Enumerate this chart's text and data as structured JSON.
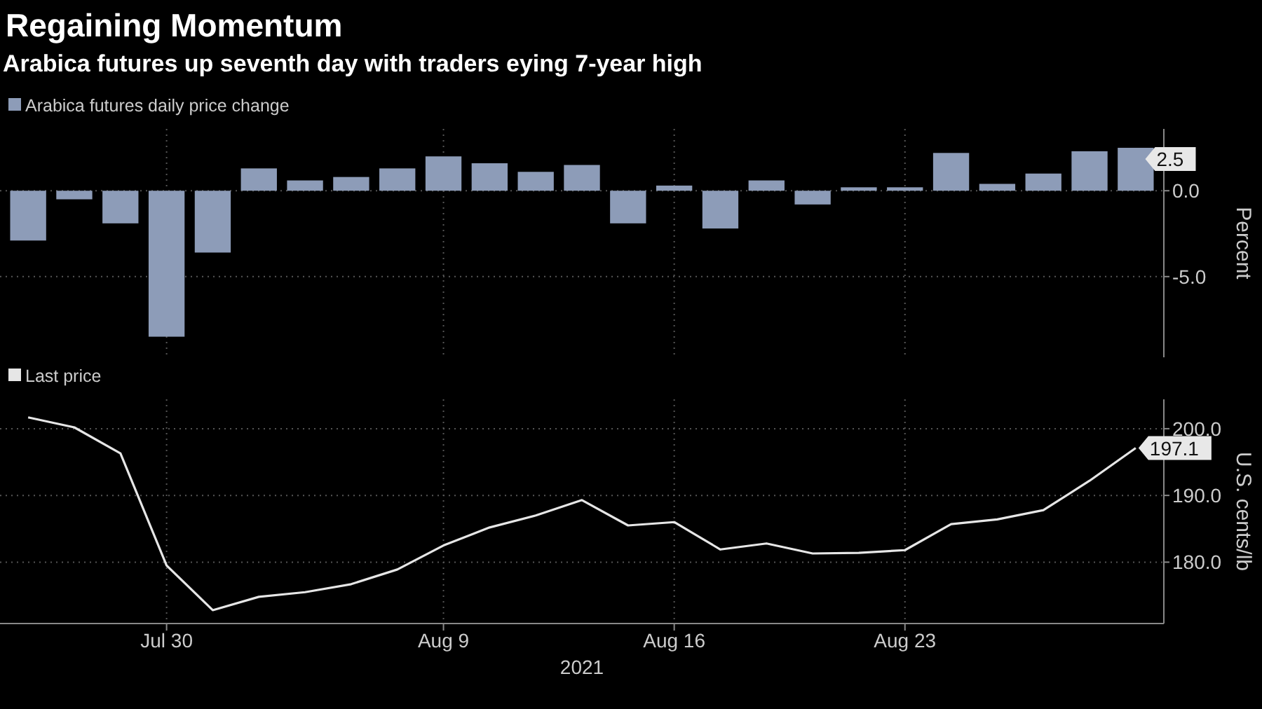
{
  "chart_data": [
    {
      "type": "bar",
      "title": "Regaining Momentum",
      "subtitle": "Arabica futures up seventh day with traders eying 7-year high",
      "categories": [
        null,
        null,
        null,
        null,
        null,
        null,
        null,
        null,
        null,
        null,
        null,
        null,
        null,
        null,
        null,
        null,
        null,
        null,
        null,
        null,
        null,
        null,
        null,
        null,
        null
      ],
      "series": [
        {
          "name": "Arabica futures daily price change",
          "color": "#8d9cb8",
          "values": [
            -2.9,
            -0.5,
            -1.9,
            -8.5,
            -3.6,
            1.3,
            0.6,
            0.8,
            1.3,
            2.0,
            1.6,
            1.1,
            1.5,
            -1.9,
            0.3,
            -2.2,
            0.6,
            -0.8,
            0.2,
            0.2,
            2.2,
            0.4,
            1.0,
            2.3,
            2.5
          ],
          "value_labels": [
            null,
            null,
            null,
            null,
            null,
            null,
            null,
            null,
            null,
            null,
            null,
            null,
            null,
            null,
            null,
            null,
            null,
            null,
            null,
            null,
            null,
            null,
            null,
            null,
            "2.5"
          ]
        }
      ],
      "ylim": [
        -9.7,
        3.6
      ],
      "yticks": [
        {
          "value": -5,
          "label": "-5.0"
        },
        {
          "value": 0,
          "label": "0.0"
        }
      ],
      "ylabel": "Percent",
      "grid": true,
      "legend": "top left",
      "tick_labels": "y"
    },
    {
      "type": "line",
      "xlabel": "2021",
      "categories": [
        null,
        null,
        null,
        "Jul 30",
        null,
        null,
        null,
        null,
        null,
        "Aug 9",
        null,
        null,
        null,
        null,
        "Aug 16",
        null,
        null,
        null,
        null,
        "Aug 23",
        null,
        null,
        null,
        null,
        null
      ],
      "series": [
        {
          "name": "Last price",
          "color": "#e6e6e6",
          "values": [
            201.7,
            200.2,
            196.3,
            179.5,
            172.8,
            174.8,
            175.5,
            176.7,
            178.9,
            182.5,
            185.2,
            187.0,
            189.3,
            185.5,
            186.0,
            181.9,
            182.8,
            181.3,
            181.4,
            181.8,
            185.7,
            186.4,
            187.8,
            192.2,
            197.1
          ],
          "value_labels": [
            null,
            null,
            null,
            null,
            null,
            null,
            null,
            null,
            null,
            null,
            null,
            null,
            null,
            null,
            null,
            null,
            null,
            null,
            null,
            null,
            null,
            null,
            null,
            null,
            "197.1"
          ]
        }
      ],
      "ylim": [
        170.8,
        204.4
      ],
      "yticks": [
        {
          "value": 180,
          "label": "180.0"
        },
        {
          "value": 190,
          "label": "190.0"
        },
        {
          "value": 200,
          "label": "200.0"
        }
      ],
      "ylabel": "U.S. cents/lb",
      "grid": true,
      "legend": "top left",
      "marker": "none"
    }
  ]
}
